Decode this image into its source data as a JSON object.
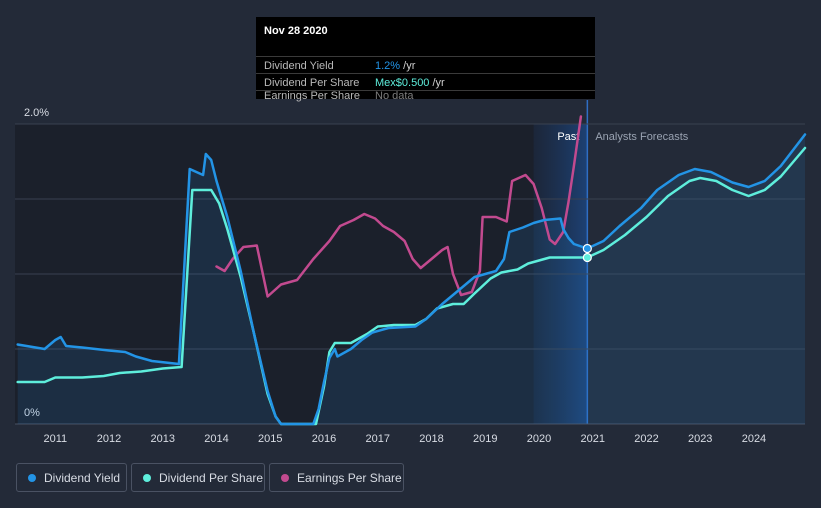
{
  "tooltip": {
    "date": "Nov 28 2020",
    "rows": [
      {
        "label": "Dividend Yield",
        "value": "1.2%",
        "unit": " /yr",
        "color": "#2394e6"
      },
      {
        "label": "Dividend Per Share",
        "value": "Mex$0.500",
        "unit": " /yr",
        "color": "#5eeedc"
      },
      {
        "label": "Earnings Per Share",
        "value": "No data",
        "unit": "",
        "color": "#7d7d7d"
      }
    ]
  },
  "regions": {
    "past": "Past",
    "forecast": "Analysts Forecasts"
  },
  "legend": [
    {
      "label": "Dividend Yield",
      "color": "#2394e6"
    },
    {
      "label": "Dividend Per Share",
      "color": "#5eeedc"
    },
    {
      "label": "Earnings Per Share",
      "color": "#c24a8f"
    }
  ],
  "chart_data": {
    "type": "line",
    "x_ticks": [
      "2011",
      "2012",
      "2013",
      "2014",
      "2015",
      "2016",
      "2017",
      "2018",
      "2019",
      "2020",
      "2021",
      "2022",
      "2023",
      "2024"
    ],
    "y_ticks": [
      "0%",
      "2.0%"
    ],
    "ylim": [
      0,
      2.0
    ],
    "xlim": [
      2010.25,
      2024.95
    ],
    "forecast_start": 2020.9,
    "past_highlight_start": 2019.9,
    "marker_x": 2020.9,
    "grid": true,
    "series": [
      {
        "name": "Dividend Yield",
        "color": "#2394e6",
        "points": [
          [
            2010.3,
            0.53
          ],
          [
            2010.8,
            0.5
          ],
          [
            2011.0,
            0.56
          ],
          [
            2011.1,
            0.58
          ],
          [
            2011.2,
            0.52
          ],
          [
            2011.5,
            0.51
          ],
          [
            2012.0,
            0.49
          ],
          [
            2012.3,
            0.48
          ],
          [
            2012.5,
            0.45
          ],
          [
            2012.8,
            0.42
          ],
          [
            2013.3,
            0.4
          ],
          [
            2013.5,
            1.7
          ],
          [
            2013.75,
            1.66
          ],
          [
            2013.8,
            1.8
          ],
          [
            2013.9,
            1.76
          ],
          [
            2014.0,
            1.62
          ],
          [
            2014.2,
            1.38
          ],
          [
            2014.45,
            1.02
          ],
          [
            2014.7,
            0.6
          ],
          [
            2014.95,
            0.22
          ],
          [
            2015.1,
            0.05
          ],
          [
            2015.2,
            0.0
          ],
          [
            2015.8,
            0.0
          ],
          [
            2015.9,
            0.1
          ],
          [
            2016.0,
            0.28
          ],
          [
            2016.1,
            0.44
          ],
          [
            2016.2,
            0.5
          ],
          [
            2016.25,
            0.45
          ],
          [
            2016.5,
            0.5
          ],
          [
            2016.7,
            0.56
          ],
          [
            2016.9,
            0.61
          ],
          [
            2017.2,
            0.64
          ],
          [
            2017.7,
            0.65
          ],
          [
            2017.9,
            0.7
          ],
          [
            2018.2,
            0.8
          ],
          [
            2018.5,
            0.89
          ],
          [
            2018.8,
            0.98
          ],
          [
            2019.2,
            1.02
          ],
          [
            2019.35,
            1.1
          ],
          [
            2019.45,
            1.28
          ],
          [
            2019.7,
            1.31
          ],
          [
            2019.9,
            1.34
          ],
          [
            2020.1,
            1.36
          ],
          [
            2020.4,
            1.37
          ],
          [
            2020.45,
            1.3
          ],
          [
            2020.55,
            1.24
          ],
          [
            2020.65,
            1.2
          ],
          [
            2020.9,
            1.17
          ],
          [
            2021.2,
            1.22
          ],
          [
            2021.5,
            1.32
          ],
          [
            2021.9,
            1.44
          ],
          [
            2022.2,
            1.56
          ],
          [
            2022.6,
            1.66
          ],
          [
            2022.9,
            1.7
          ],
          [
            2023.2,
            1.68
          ],
          [
            2023.6,
            1.61
          ],
          [
            2023.9,
            1.58
          ],
          [
            2024.2,
            1.62
          ],
          [
            2024.5,
            1.72
          ],
          [
            2024.95,
            1.93
          ]
        ]
      },
      {
        "name": "Dividend Per Share",
        "color": "#5eeedc",
        "points": [
          [
            2010.3,
            0.28
          ],
          [
            2010.8,
            0.28
          ],
          [
            2011.0,
            0.31
          ],
          [
            2011.1,
            0.31
          ],
          [
            2011.5,
            0.31
          ],
          [
            2011.9,
            0.32
          ],
          [
            2012.2,
            0.34
          ],
          [
            2012.6,
            0.35
          ],
          [
            2013.0,
            0.37
          ],
          [
            2013.35,
            0.38
          ],
          [
            2013.55,
            1.56
          ],
          [
            2013.9,
            1.56
          ],
          [
            2014.05,
            1.47
          ],
          [
            2014.2,
            1.3
          ],
          [
            2014.45,
            0.98
          ],
          [
            2014.7,
            0.6
          ],
          [
            2014.95,
            0.2
          ],
          [
            2015.1,
            0.05
          ],
          [
            2015.2,
            0.0
          ],
          [
            2015.85,
            0.0
          ],
          [
            2016.0,
            0.25
          ],
          [
            2016.1,
            0.48
          ],
          [
            2016.2,
            0.54
          ],
          [
            2016.5,
            0.54
          ],
          [
            2016.8,
            0.6
          ],
          [
            2017.0,
            0.65
          ],
          [
            2017.3,
            0.66
          ],
          [
            2017.7,
            0.66
          ],
          [
            2017.9,
            0.7
          ],
          [
            2018.1,
            0.77
          ],
          [
            2018.4,
            0.8
          ],
          [
            2018.6,
            0.8
          ],
          [
            2018.8,
            0.87
          ],
          [
            2019.1,
            0.97
          ],
          [
            2019.3,
            1.01
          ],
          [
            2019.6,
            1.03
          ],
          [
            2019.8,
            1.07
          ],
          [
            2020.2,
            1.11
          ],
          [
            2020.6,
            1.11
          ],
          [
            2020.9,
            1.11
          ],
          [
            2021.2,
            1.16
          ],
          [
            2021.6,
            1.26
          ],
          [
            2022.0,
            1.38
          ],
          [
            2022.4,
            1.52
          ],
          [
            2022.8,
            1.62
          ],
          [
            2023.0,
            1.64
          ],
          [
            2023.3,
            1.62
          ],
          [
            2023.6,
            1.56
          ],
          [
            2023.9,
            1.52
          ],
          [
            2024.2,
            1.56
          ],
          [
            2024.5,
            1.65
          ],
          [
            2024.95,
            1.84
          ]
        ]
      },
      {
        "name": "Earnings Per Share",
        "color": "#c24a8f",
        "points": [
          [
            2014.0,
            1.05
          ],
          [
            2014.15,
            1.02
          ],
          [
            2014.3,
            1.1
          ],
          [
            2014.5,
            1.18
          ],
          [
            2014.75,
            1.19
          ],
          [
            2014.85,
            1.02
          ],
          [
            2014.95,
            0.85
          ],
          [
            2015.2,
            0.93
          ],
          [
            2015.5,
            0.96
          ],
          [
            2015.8,
            1.1
          ],
          [
            2016.1,
            1.22
          ],
          [
            2016.3,
            1.32
          ],
          [
            2016.55,
            1.36
          ],
          [
            2016.75,
            1.4
          ],
          [
            2016.95,
            1.37
          ],
          [
            2017.1,
            1.32
          ],
          [
            2017.3,
            1.28
          ],
          [
            2017.5,
            1.22
          ],
          [
            2017.65,
            1.1
          ],
          [
            2017.8,
            1.04
          ],
          [
            2018.0,
            1.1
          ],
          [
            2018.2,
            1.16
          ],
          [
            2018.3,
            1.18
          ],
          [
            2018.4,
            1.0
          ],
          [
            2018.55,
            0.86
          ],
          [
            2018.75,
            0.88
          ],
          [
            2018.9,
            1.02
          ],
          [
            2018.95,
            1.38
          ],
          [
            2019.2,
            1.38
          ],
          [
            2019.4,
            1.35
          ],
          [
            2019.5,
            1.62
          ],
          [
            2019.75,
            1.66
          ],
          [
            2019.9,
            1.6
          ],
          [
            2020.05,
            1.44
          ],
          [
            2020.2,
            1.23
          ],
          [
            2020.3,
            1.2
          ],
          [
            2020.45,
            1.28
          ],
          [
            2020.55,
            1.48
          ],
          [
            2020.65,
            1.72
          ],
          [
            2020.78,
            2.05
          ]
        ]
      }
    ]
  }
}
